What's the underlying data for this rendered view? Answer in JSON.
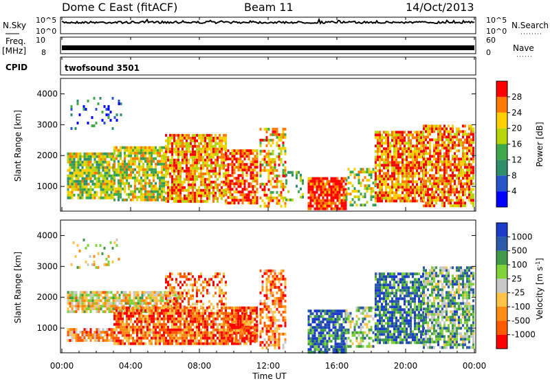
{
  "header": {
    "station": "Dome C East (fitACF)",
    "beam": "Beam 11",
    "date": "14/Oct/2013"
  },
  "panels": {
    "nsky": {
      "label": "N.Sky",
      "ticks_left": [
        "10^5",
        "10^0"
      ],
      "ticks_right": [
        "10^5",
        "10^0"
      ],
      "right_label": "N.Search"
    },
    "freq": {
      "label_line1": "Freq.",
      "label_line2": "[MHz]",
      "ticks_left": [
        "10",
        "8"
      ],
      "ticks_right": [
        "60",
        "0"
      ],
      "right_label": "Nave"
    },
    "cpid": {
      "label": "CPID",
      "program": "twofsound 3501"
    }
  },
  "chart_data": [
    {
      "type": "heatmap",
      "name": "power",
      "ylabel": "Slant Range [km]",
      "xlabel": "",
      "ylim": [
        200,
        4500
      ],
      "yticks": [
        "4000",
        "3000",
        "2000",
        "1000"
      ],
      "colorbar": {
        "label": "Power [dB]",
        "ticks": [
          "28",
          "24",
          "20",
          "16",
          "12",
          "8",
          "4"
        ],
        "colors": [
          "#0000ff",
          "#2456c8",
          "#2f8f6a",
          "#3ea84a",
          "#b8d40a",
          "#ffd000",
          "#ff7a00",
          "#ff0000"
        ]
      },
      "clusters": [
        {
          "t0": 0.3,
          "t1": 3.0,
          "r0": 600,
          "r1": 2100,
          "density": 0.85,
          "level": 0.55
        },
        {
          "t0": 3.0,
          "t1": 6.0,
          "r0": 600,
          "r1": 2300,
          "density": 0.8,
          "level": 0.6
        },
        {
          "t0": 6.0,
          "t1": 9.5,
          "r0": 500,
          "r1": 2700,
          "density": 0.8,
          "level": 0.75
        },
        {
          "t0": 9.5,
          "t1": 11.3,
          "r0": 500,
          "r1": 2200,
          "density": 0.7,
          "level": 0.85
        },
        {
          "t0": 11.5,
          "t1": 13.0,
          "r0": 400,
          "r1": 2900,
          "density": 0.55,
          "level": 0.7
        },
        {
          "t0": 13.0,
          "t1": 14.0,
          "r0": 600,
          "r1": 1500,
          "density": 0.3,
          "level": 0.5
        },
        {
          "t0": 14.3,
          "t1": 16.5,
          "r0": 250,
          "r1": 1300,
          "density": 0.9,
          "level": 0.95
        },
        {
          "t0": 16.5,
          "t1": 18.2,
          "r0": 400,
          "r1": 1600,
          "density": 0.45,
          "level": 0.55
        },
        {
          "t0": 18.2,
          "t1": 21.0,
          "r0": 500,
          "r1": 2800,
          "density": 0.8,
          "level": 0.8
        },
        {
          "t0": 21.0,
          "t1": 24.0,
          "r0": 400,
          "r1": 3000,
          "density": 0.75,
          "level": 0.8
        },
        {
          "t0": 0.5,
          "t1": 3.5,
          "r0": 2900,
          "r1": 3900,
          "density": 0.12,
          "level": 0.25
        }
      ]
    },
    {
      "type": "heatmap",
      "name": "velocity",
      "ylabel": "Slant Range [km]",
      "xlabel": "Time UT",
      "ylim": [
        200,
        4500
      ],
      "yticks": [
        "4000",
        "3000",
        "2000",
        "1000"
      ],
      "xticks": [
        "00:00",
        "04:00",
        "08:00",
        "12:00",
        "16:00",
        "20:00",
        "00:00"
      ],
      "colorbar": {
        "label": "Velocity [m s^-1]",
        "ticks": [
          "1000",
          "500",
          "100",
          "25",
          "-25",
          "-100",
          "-500",
          "-1000"
        ],
        "colors": [
          "#ff0000",
          "#ff5a00",
          "#ff8c14",
          "#ffc34a",
          "#c8c8c8",
          "#7fd23a",
          "#3f9a4a",
          "#2a5aa8",
          "#1c3cc8"
        ]
      },
      "clusters": [
        {
          "t0": 0.3,
          "t1": 7.0,
          "r0": 1500,
          "r1": 2200,
          "density": 0.85,
          "level": 0.45
        },
        {
          "t0": 0.3,
          "t1": 3.0,
          "r0": 600,
          "r1": 1000,
          "density": 0.8,
          "level": 0.3
        },
        {
          "t0": 3.0,
          "t1": 11.3,
          "r0": 500,
          "r1": 1700,
          "density": 0.85,
          "level": 0.2
        },
        {
          "t0": 6.0,
          "t1": 9.5,
          "r0": 1700,
          "r1": 2800,
          "density": 0.4,
          "level": 0.2
        },
        {
          "t0": 9.5,
          "t1": 11.3,
          "r0": 600,
          "r1": 1500,
          "density": 0.5,
          "level": 0.12
        },
        {
          "t0": 11.5,
          "t1": 13.0,
          "r0": 400,
          "r1": 2900,
          "density": 0.55,
          "level": 0.25
        },
        {
          "t0": 14.3,
          "t1": 16.5,
          "r0": 250,
          "r1": 1600,
          "density": 0.8,
          "level": 0.85
        },
        {
          "t0": 16.5,
          "t1": 18.2,
          "r0": 400,
          "r1": 1700,
          "density": 0.5,
          "level": 0.6
        },
        {
          "t0": 18.2,
          "t1": 21.0,
          "r0": 500,
          "r1": 2800,
          "density": 0.8,
          "level": 0.8
        },
        {
          "t0": 21.0,
          "t1": 24.0,
          "r0": 400,
          "r1": 3000,
          "density": 0.75,
          "level": 0.65
        },
        {
          "t0": 0.5,
          "t1": 3.5,
          "r0": 2900,
          "r1": 3900,
          "density": 0.12,
          "level": 0.45
        }
      ]
    }
  ]
}
